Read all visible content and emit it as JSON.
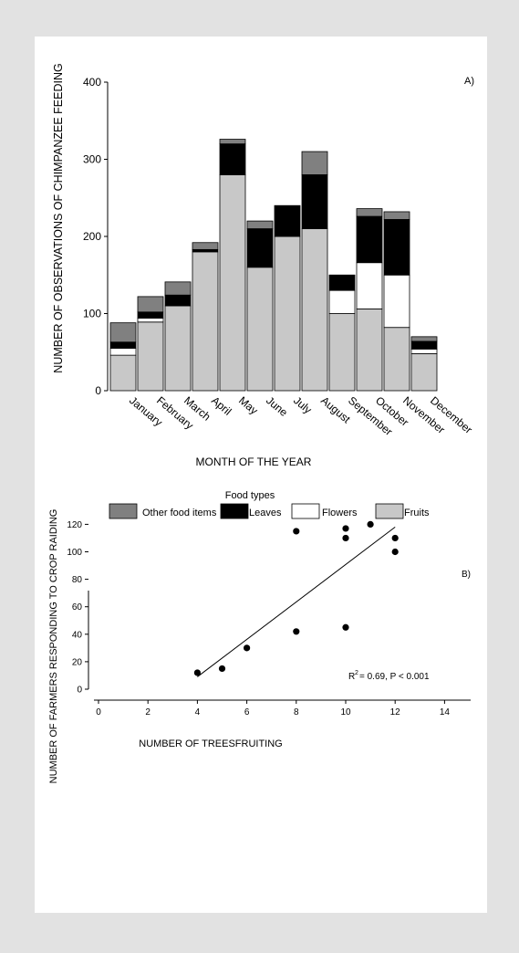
{
  "chart_data": [
    {
      "type": "bar",
      "stacked": true,
      "panel_label": "A)",
      "title": "",
      "xlabel": "MONTH OF THE YEAR",
      "ylabel": "NUMBER OF OBSERVATIONS OF CHIMPANZEE FEEDING",
      "ylim": [
        0,
        400
      ],
      "yticks": [
        "0",
        "100",
        "200",
        "300",
        "400"
      ],
      "grid": false,
      "categories": [
        "January",
        "February",
        "March",
        "April",
        "May",
        "June",
        "July",
        "August",
        "September",
        "October",
        "November",
        "December"
      ],
      "legend_title": "Food types",
      "legend_position": "bottom",
      "series": [
        {
          "name": "Fruits",
          "color": "#c8c8c8",
          "values": [
            46,
            89,
            110,
            180,
            280,
            160,
            200,
            210,
            100,
            106,
            82,
            48
          ]
        },
        {
          "name": "Flowers",
          "color": "#ffffff",
          "values": [
            9,
            5,
            0,
            0,
            0,
            0,
            0,
            0,
            30,
            60,
            68,
            6
          ]
        },
        {
          "name": "Leaves",
          "color": "#000000",
          "values": [
            8,
            8,
            14,
            3,
            40,
            50,
            40,
            70,
            20,
            60,
            72,
            10
          ]
        },
        {
          "name": "Other food items",
          "color": "#808080",
          "values": [
            25,
            20,
            17,
            9,
            6,
            10,
            0,
            30,
            0,
            10,
            10,
            6
          ]
        }
      ]
    },
    {
      "type": "scatter",
      "panel_label": "B)",
      "title": "",
      "xlabel": "NUMBER OF TREESFRUITING",
      "ylabel": "NUMBER OF FARMERS RESPONDING TO CROP RAIDING",
      "xlim": [
        0,
        14
      ],
      "ylim": [
        0,
        120
      ],
      "xticks": [
        "0",
        "2",
        "4",
        "6",
        "8",
        "10",
        "12",
        "14"
      ],
      "yticks": [
        "0",
        "20",
        "40",
        "60",
        "80",
        "100",
        "120"
      ],
      "grid": false,
      "points": [
        {
          "x": 4,
          "y": 12
        },
        {
          "x": 5,
          "y": 15
        },
        {
          "x": 6,
          "y": 30
        },
        {
          "x": 8,
          "y": 42
        },
        {
          "x": 8,
          "y": 115
        },
        {
          "x": 10,
          "y": 45
        },
        {
          "x": 10,
          "y": 110
        },
        {
          "x": 10,
          "y": 117
        },
        {
          "x": 11,
          "y": 120
        },
        {
          "x": 12,
          "y": 110
        },
        {
          "x": 12,
          "y": 100
        }
      ],
      "fit_line": {
        "x": [
          4,
          12
        ],
        "y": [
          9,
          118
        ]
      },
      "annotation": "= 0.69, P < 0.001",
      "annotation_prefix": "R",
      "annotation_sup": "2"
    }
  ]
}
